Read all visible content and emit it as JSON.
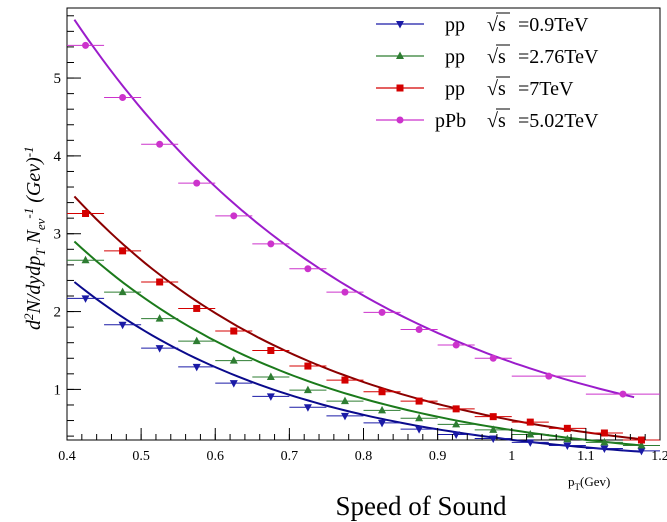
{
  "chart_data": {
    "type": "scatter",
    "title": "",
    "xlabel": "Speed of Sound",
    "x_unit_label": "p",
    "x_unit_sub": "T",
    "x_unit_suffix": "(Gev)",
    "ylabel": "d²N/dydp_T N_ev^-1 (Gev)^-1",
    "xlim": [
      0.4,
      1.2
    ],
    "ylim": [
      0.35,
      5.9
    ],
    "x_ticks": [
      "0.4",
      "0.5",
      "0.6",
      "0.7",
      "0.8",
      "0.9",
      "1",
      "1.1",
      "1.2"
    ],
    "y_ticks": [
      "1",
      "2",
      "3",
      "4",
      "5"
    ],
    "grid": false,
    "legend_position": "top-right",
    "series": [
      {
        "name": "pp √s =0.9TeV",
        "system": "pp",
        "energy": "=0.9TeV",
        "color": "#1a1aa6",
        "curve_color": "#0a0a8c",
        "marker": "triangle-down",
        "x": [
          0.425,
          0.475,
          0.525,
          0.575,
          0.625,
          0.675,
          0.725,
          0.775,
          0.825,
          0.875,
          0.925,
          0.975,
          1.025,
          1.075,
          1.125,
          1.175
        ],
        "y": [
          2.17,
          1.83,
          1.53,
          1.29,
          1.08,
          0.91,
          0.77,
          0.66,
          0.57,
          0.49,
          0.42,
          0.37,
          0.32,
          0.28,
          0.24,
          0.21
        ],
        "curve": {
          "x0": 0.41,
          "y0": 2.38,
          "x1": 1.175,
          "y1": 0.2
        }
      },
      {
        "name": "pp √s =2.76TeV",
        "system": "pp",
        "energy": "=2.76TeV",
        "color": "#2e7d32",
        "curve_color": "#1b7a1b",
        "marker": "triangle-up",
        "x": [
          0.425,
          0.475,
          0.525,
          0.575,
          0.625,
          0.675,
          0.725,
          0.775,
          0.825,
          0.875,
          0.925,
          0.975,
          1.025,
          1.075,
          1.125,
          1.175
        ],
        "y": [
          2.66,
          2.25,
          1.91,
          1.62,
          1.37,
          1.16,
          0.99,
          0.85,
          0.73,
          0.63,
          0.55,
          0.48,
          0.42,
          0.36,
          0.32,
          0.28
        ],
        "curve": {
          "x0": 0.41,
          "y0": 2.9,
          "x1": 1.175,
          "y1": 0.28
        }
      },
      {
        "name": "pp √s =7TeV",
        "system": "pp",
        "energy": "=7TeV",
        "color": "#d40000",
        "curve_color": "#8b0000",
        "marker": "square",
        "x": [
          0.425,
          0.475,
          0.525,
          0.575,
          0.625,
          0.675,
          0.725,
          0.775,
          0.825,
          0.875,
          0.925,
          0.975,
          1.025,
          1.075,
          1.125,
          1.175
        ],
        "y": [
          3.26,
          2.78,
          2.38,
          2.04,
          1.75,
          1.5,
          1.3,
          1.12,
          0.97,
          0.85,
          0.75,
          0.65,
          0.58,
          0.5,
          0.44,
          0.35
        ],
        "curve": {
          "x0": 0.41,
          "y0": 3.48,
          "x1": 1.175,
          "y1": 0.36
        }
      },
      {
        "name": "pPb √s =5.02TeV",
        "system": "pPb",
        "energy": "=5.02TeV",
        "color": "#cc33cc",
        "curve_color": "#9b1ccb",
        "marker": "circle",
        "x": [
          0.425,
          0.475,
          0.525,
          0.575,
          0.625,
          0.675,
          0.725,
          0.775,
          0.825,
          0.875,
          0.925,
          0.975,
          1.05,
          1.15
        ],
        "y": [
          5.42,
          4.75,
          4.15,
          3.65,
          3.23,
          2.87,
          2.55,
          2.25,
          1.99,
          1.77,
          1.57,
          1.4,
          1.17,
          0.94
        ],
        "curve": {
          "x0": 0.41,
          "y0": 5.75,
          "x1": 1.165,
          "y1": 0.9
        }
      }
    ]
  }
}
